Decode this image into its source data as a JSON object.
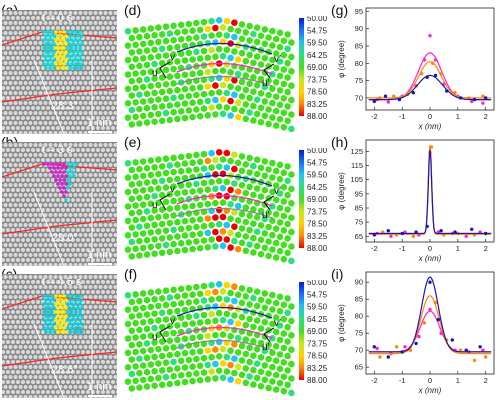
{
  "labels": {
    "a": "(a)",
    "b": "(b)",
    "c": "(c)",
    "d": "(d)",
    "e": "(e)",
    "f": "(f)",
    "g": "(g)",
    "h": "(h)",
    "i": "(i)"
  },
  "tem_panels": [
    {
      "time": "t = 0 s",
      "angle": "28.3°",
      "scale": "1 nm"
    },
    {
      "time": "t = 3 s",
      "angle": "29.0°",
      "scale": "1 nm"
    },
    {
      "time": "t = 4.5 s",
      "angle": "28.6°",
      "scale": "1 nm"
    }
  ],
  "map_labels": {
    "u": "u",
    "u_prime": "u′",
    "v": "v",
    "v_prime": "v′"
  },
  "colorbar": {
    "ticks": [
      "50.00",
      "54.75",
      "59.50",
      "64.25",
      "69.00",
      "73.75",
      "78.50",
      "83.25",
      "88.00"
    ],
    "stops": [
      "#0022cc",
      "#1a6cff",
      "#22c4f0",
      "#2ee07a",
      "#44dd22",
      "#c8e61c",
      "#ffd400",
      "#ff8a00",
      "#ee0000"
    ]
  },
  "chart_data": [
    {
      "type": "scatter",
      "xlabel": "x (nm)",
      "ylabel": "φ (degree)",
      "xlim": [
        -2.3,
        2.3
      ],
      "ylim": [
        66.5,
        96
      ],
      "xticks": [
        "-2",
        "-1",
        "0",
        "1",
        "2"
      ],
      "yticks": [
        "70",
        "75",
        "80",
        "85",
        "90",
        "95"
      ],
      "ytick_values": [
        70,
        75,
        80,
        85,
        90,
        95
      ],
      "series": [
        {
          "color": "#ff22cc",
          "points": [
            [
              -1.9,
              69.5
            ],
            [
              -1.5,
              68.8
            ],
            [
              -1.0,
              70.5
            ],
            [
              -0.5,
              73.5
            ],
            [
              -0.2,
              81
            ],
            [
              0.0,
              88
            ],
            [
              0.2,
              81
            ],
            [
              0.5,
              74
            ],
            [
              1.0,
              70.5
            ],
            [
              1.5,
              69
            ],
            [
              1.9,
              68.5
            ]
          ],
          "fit": {
            "base": 69.5,
            "amp": 13.5,
            "width": 0.42
          }
        },
        {
          "color": "#ff8800",
          "points": [
            [
              -1.8,
              70
            ],
            [
              -1.3,
              70.5
            ],
            [
              -0.8,
              71
            ],
            [
              -0.3,
              77
            ],
            [
              0.1,
              80
            ],
            [
              0.4,
              77
            ],
            [
              0.9,
              71.5
            ],
            [
              1.4,
              70
            ],
            [
              1.9,
              70.5
            ]
          ],
          "fit": {
            "base": 70,
            "amp": 10.5,
            "width": 0.4
          }
        },
        {
          "color": "#1a1aaa",
          "points": [
            [
              -2.0,
              69
            ],
            [
              -1.6,
              70.5
            ],
            [
              -1.1,
              69.5
            ],
            [
              -0.6,
              71.5
            ],
            [
              -0.1,
              76
            ],
            [
              0.2,
              76.5
            ],
            [
              0.6,
              72
            ],
            [
              1.1,
              70
            ],
            [
              1.6,
              69.5
            ],
            [
              2.0,
              70
            ]
          ],
          "fit": {
            "base": 69.5,
            "amp": 7,
            "width": 0.45
          }
        }
      ]
    },
    {
      "type": "scatter",
      "xlabel": "x (nm)",
      "ylabel": "φ (degree)",
      "xlim": [
        -2.3,
        2.3
      ],
      "ylim": [
        61,
        133
      ],
      "xticks": [
        "-2",
        "-1",
        "0",
        "1",
        "2"
      ],
      "yticks": [
        "65",
        "75",
        "85",
        "95",
        "105",
        "115",
        "125"
      ],
      "ytick_values": [
        65,
        75,
        85,
        95,
        105,
        115,
        125
      ],
      "series": [
        {
          "color": "#ff22cc",
          "points": [
            [
              -1.9,
              67
            ],
            [
              -1.4,
              65
            ],
            [
              -0.9,
              68
            ],
            [
              -0.4,
              66
            ],
            [
              0.0,
              124
            ],
            [
              0.3,
              68
            ],
            [
              0.8,
              67
            ],
            [
              1.3,
              65
            ],
            [
              1.8,
              68
            ]
          ],
          "fit": {
            "base": 67,
            "amp": 62,
            "width": 0.06
          }
        },
        {
          "color": "#ff8800",
          "points": [
            [
              -1.7,
              68
            ],
            [
              -1.2,
              66
            ],
            [
              -0.6,
              65
            ],
            [
              0.05,
              128
            ],
            [
              0.5,
              66
            ],
            [
              1.0,
              67
            ],
            [
              1.6,
              66
            ]
          ],
          "fit": {
            "base": 66.5,
            "amp": 63,
            "width": 0.06
          }
        },
        {
          "color": "#1a1aaa",
          "points": [
            [
              -2.0,
              66
            ],
            [
              -1.5,
              69
            ],
            [
              -1.0,
              67
            ],
            [
              -0.5,
              68
            ],
            [
              -0.1,
              72
            ],
            [
              0.4,
              69
            ],
            [
              0.9,
              68
            ],
            [
              1.5,
              70
            ],
            [
              2.0,
              67
            ]
          ],
          "fit": {
            "base": 67,
            "amp": 59,
            "width": 0.06
          }
        }
      ]
    },
    {
      "type": "scatter",
      "xlabel": "x (nm)",
      "ylabel": "φ (degree)",
      "xlim": [
        -2.3,
        2.3
      ],
      "ylim": [
        63,
        93
      ],
      "xticks": [
        "-2",
        "-1",
        "0",
        "1",
        "2"
      ],
      "yticks": [
        "65",
        "70",
        "75",
        "80",
        "85",
        "90"
      ],
      "ytick_values": [
        65,
        70,
        75,
        80,
        85,
        90
      ],
      "series": [
        {
          "color": "#ff22cc",
          "points": [
            [
              -1.9,
              70.5
            ],
            [
              -1.4,
              69
            ],
            [
              -0.9,
              71
            ],
            [
              -0.4,
              74
            ],
            [
              0.0,
              82
            ],
            [
              0.4,
              75
            ],
            [
              0.9,
              70
            ],
            [
              1.4,
              69.5
            ],
            [
              1.9,
              70
            ]
          ],
          "fit": {
            "base": 69.5,
            "amp": 12,
            "width": 0.35
          }
        },
        {
          "color": "#ff8800",
          "points": [
            [
              -1.8,
              68
            ],
            [
              -1.2,
              71
            ],
            [
              -0.7,
              70
            ],
            [
              -0.2,
              78
            ],
            [
              0.2,
              84
            ],
            [
              0.6,
              73
            ],
            [
              1.1,
              70
            ],
            [
              1.6,
              67
            ],
            [
              2.0,
              68
            ]
          ],
          "fit": {
            "base": 69,
            "amp": 17,
            "width": 0.33
          }
        },
        {
          "color": "#1a1aaa",
          "points": [
            [
              -2.0,
              71
            ],
            [
              -1.5,
              68
            ],
            [
              -1.0,
              69.5
            ],
            [
              -0.5,
              72
            ],
            [
              0.0,
              90
            ],
            [
              0.3,
              79
            ],
            [
              0.8,
              73
            ],
            [
              1.3,
              70
            ],
            [
              1.8,
              71
            ]
          ],
          "fit": {
            "base": 69.5,
            "amp": 22,
            "width": 0.3
          }
        }
      ]
    }
  ]
}
